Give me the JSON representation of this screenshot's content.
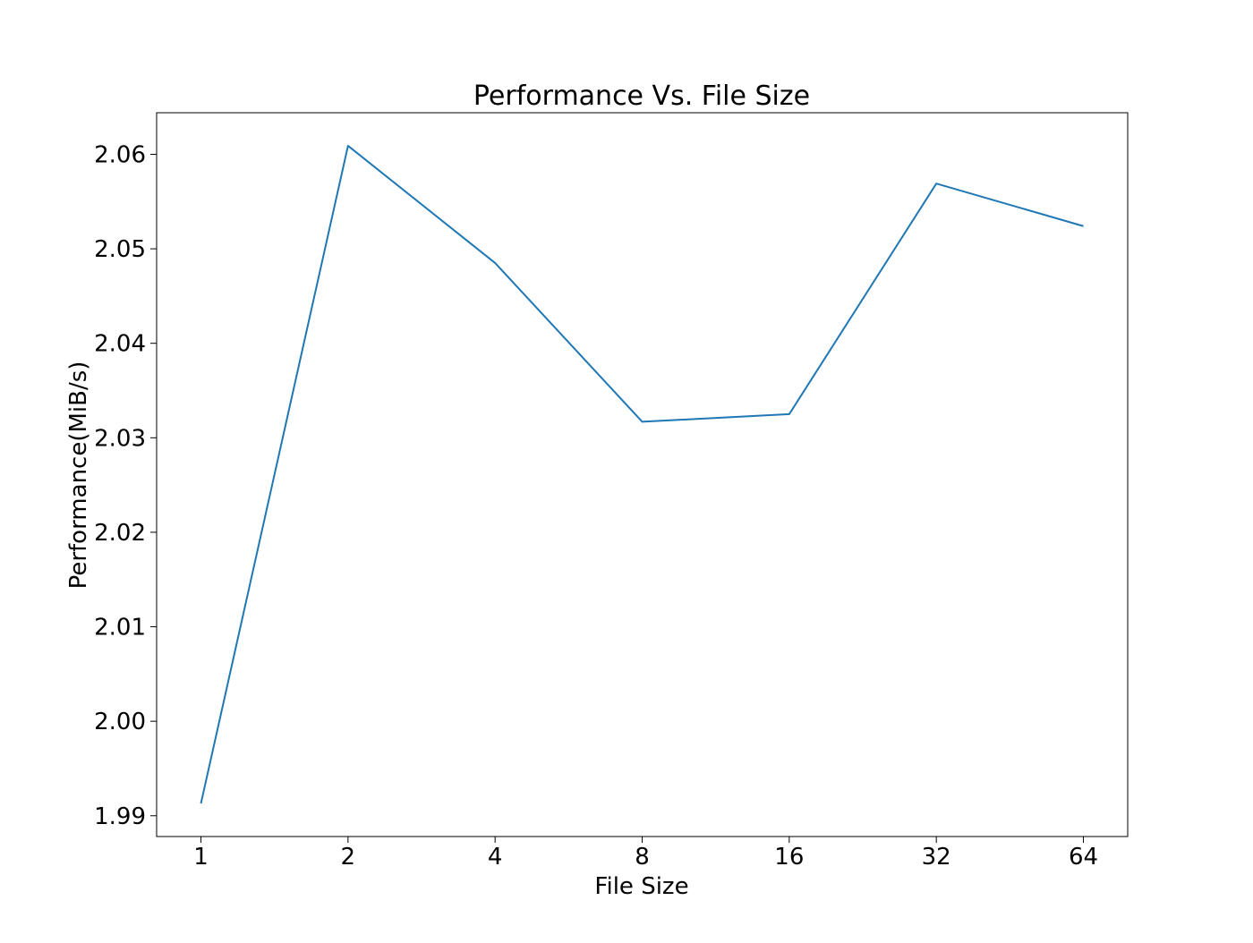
{
  "chart_data": {
    "type": "line",
    "title": "Performance Vs. File Size",
    "xlabel": "File Size",
    "ylabel": "Performance(MiB/s)",
    "categories": [
      "1",
      "2",
      "4",
      "8",
      "16",
      "32",
      "64"
    ],
    "series": [
      {
        "values": [
          1.9913,
          2.0609,
          2.0485,
          2.0317,
          2.0325,
          2.0569,
          2.0524
        ],
        "color": "#1f77b4"
      }
    ],
    "yticks": [
      "1.99",
      "2.00",
      "2.01",
      "2.02",
      "2.03",
      "2.04",
      "2.05",
      "2.06"
    ],
    "ytick_values": [
      1.99,
      2.0,
      2.01,
      2.02,
      2.03,
      2.04,
      2.05,
      2.06
    ],
    "ylim": [
      1.9878,
      2.0644
    ],
    "grid": false,
    "legend": "none"
  }
}
